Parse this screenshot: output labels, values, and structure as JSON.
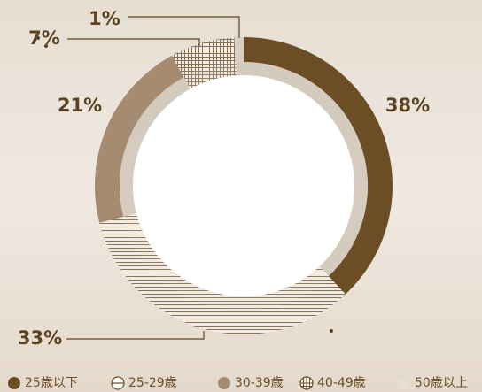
{
  "chart_data": {
    "type": "donut",
    "categories": [
      "25歳以下",
      "25-29歳",
      "30-39歳",
      "40-49歳",
      "50歳以上"
    ],
    "values": [
      38,
      33,
      21,
      7,
      1
    ],
    "value_labels": [
      "38%",
      "33%",
      "21%",
      "7%",
      "1%"
    ],
    "colors": [
      "#6b4e25",
      "#8a7355",
      "#a58b6f",
      "#8a7355",
      "#d9d0c4"
    ],
    "patterns": [
      "solid",
      "horizontal",
      "solid",
      "grid",
      "solid"
    ]
  }
}
